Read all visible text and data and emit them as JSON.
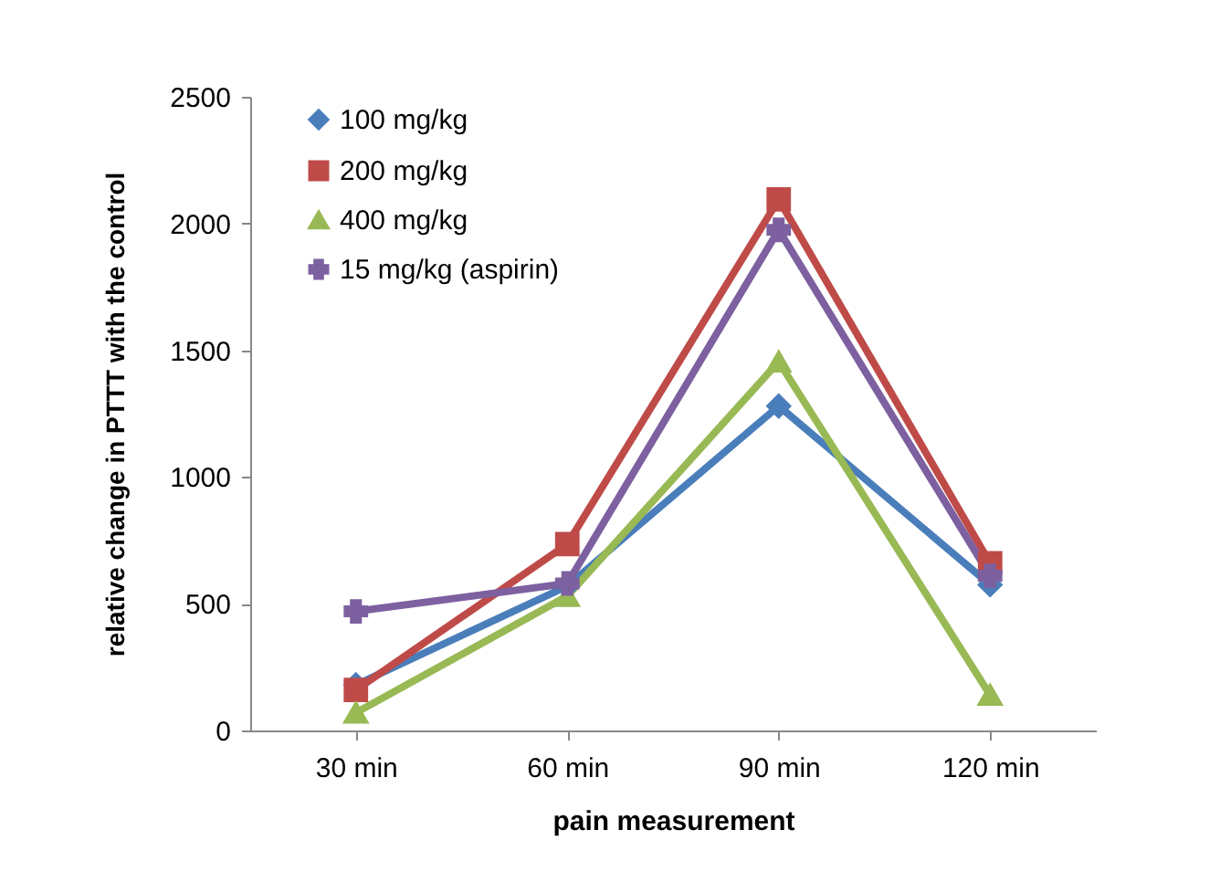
{
  "chart_data": {
    "type": "line",
    "xlabel": "pain  measurement",
    "ylabel": "relative change in  PTTT with the control",
    "categories": [
      "30 min",
      "60 min",
      "90 min",
      "120 min"
    ],
    "series": [
      {
        "name": "100 mg/kg",
        "color": "#4a7ebb",
        "marker": "diamond",
        "values": [
          180,
          570,
          1280,
          575
        ]
      },
      {
        "name": "200 mg/kg",
        "color": "#be4b48",
        "marker": "square",
        "values": [
          160,
          735,
          2095,
          660
        ]
      },
      {
        "name": "400 mg/kg",
        "color": "#98b954",
        "marker": "triangle",
        "values": [
          70,
          530,
          1455,
          140
        ]
      },
      {
        "name": "15 mg/kg (aspirin)",
        "color": "#7d60a0",
        "marker": "cross",
        "values": [
          470,
          580,
          1975,
          610
        ]
      }
    ],
    "ylim": [
      0,
      2500
    ],
    "yticks": [
      0,
      500,
      1000,
      1500,
      2000,
      2500
    ],
    "grid": false,
    "legend": "top left",
    "line_style": "solid"
  }
}
